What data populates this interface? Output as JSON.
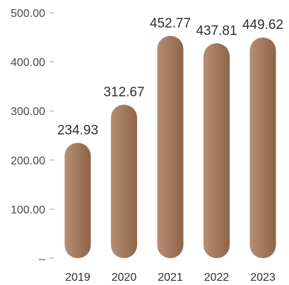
{
  "chart_data": {
    "type": "bar",
    "categories": [
      "2019",
      "2020",
      "2021",
      "2022",
      "2023"
    ],
    "values": [
      234.93,
      312.67,
      452.77,
      437.81,
      449.62
    ],
    "data_labels": [
      "234.93",
      "312.67",
      "452.77",
      "437.81",
      "449.62"
    ],
    "y_ticks": [
      0,
      100,
      200,
      300,
      400,
      500
    ],
    "y_tick_labels": [
      "–",
      "100.00",
      "200.00",
      "300.00",
      "400.00",
      "500.00"
    ],
    "ylim": [
      0,
      500
    ],
    "grid": false,
    "legend": "none",
    "bar_color_start": "#b48e76",
    "bar_color_end": "#8f6446",
    "title": "",
    "xlabel": "",
    "ylabel": ""
  }
}
